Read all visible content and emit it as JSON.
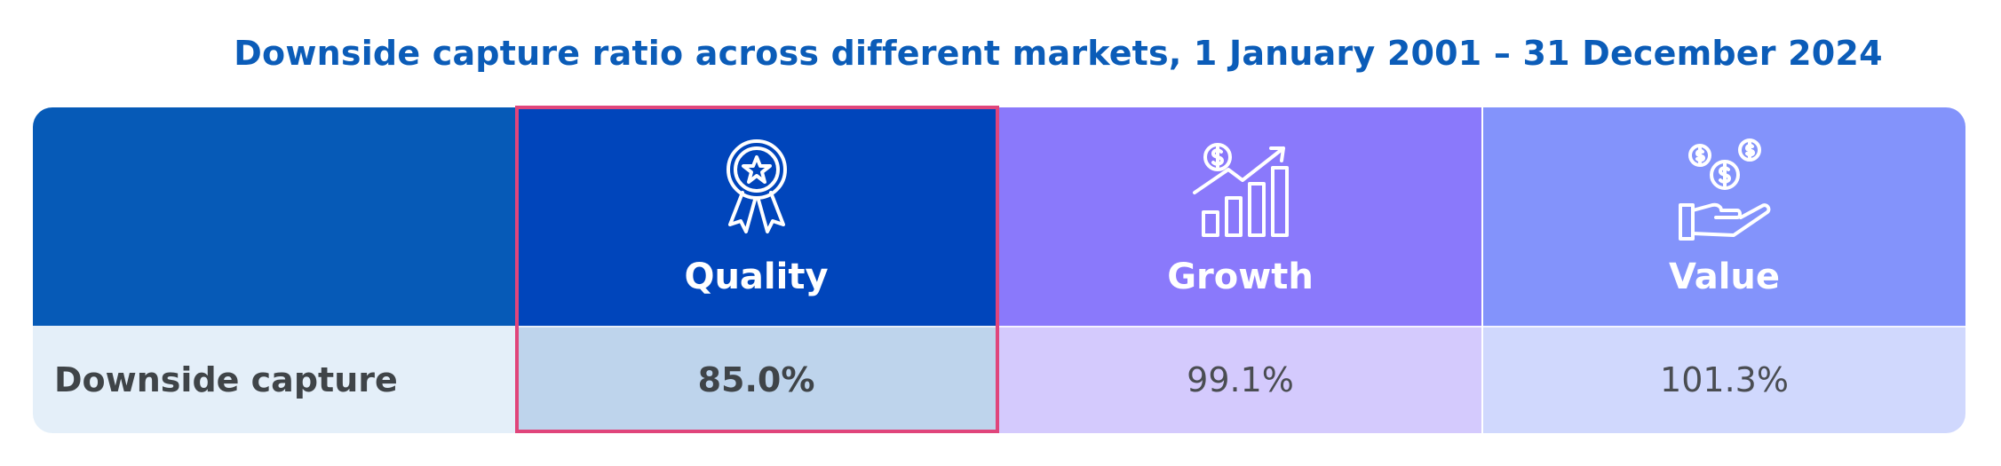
{
  "chart_data": {
    "type": "table",
    "title": "Downside capture ratio across different markets, 1 January 2001 – 31 December 2024",
    "columns": [
      {
        "label": "Quality",
        "icon": "award-ribbon-icon"
      },
      {
        "label": "Growth",
        "icon": "growth-chart-icon"
      },
      {
        "label": "Value",
        "icon": "hand-coins-icon"
      }
    ],
    "rows": [
      {
        "label": "Downside capture",
        "values": [
          "85.0%",
          "99.1%",
          "101.3%"
        ]
      }
    ],
    "highlighted_column": "Quality",
    "colors": {
      "title": "#0b5cb8",
      "quality_header": "#0045bb",
      "growth_header": "#8a79fb",
      "value_header": "#8393fb",
      "highlight_border": "#e0457b"
    }
  }
}
